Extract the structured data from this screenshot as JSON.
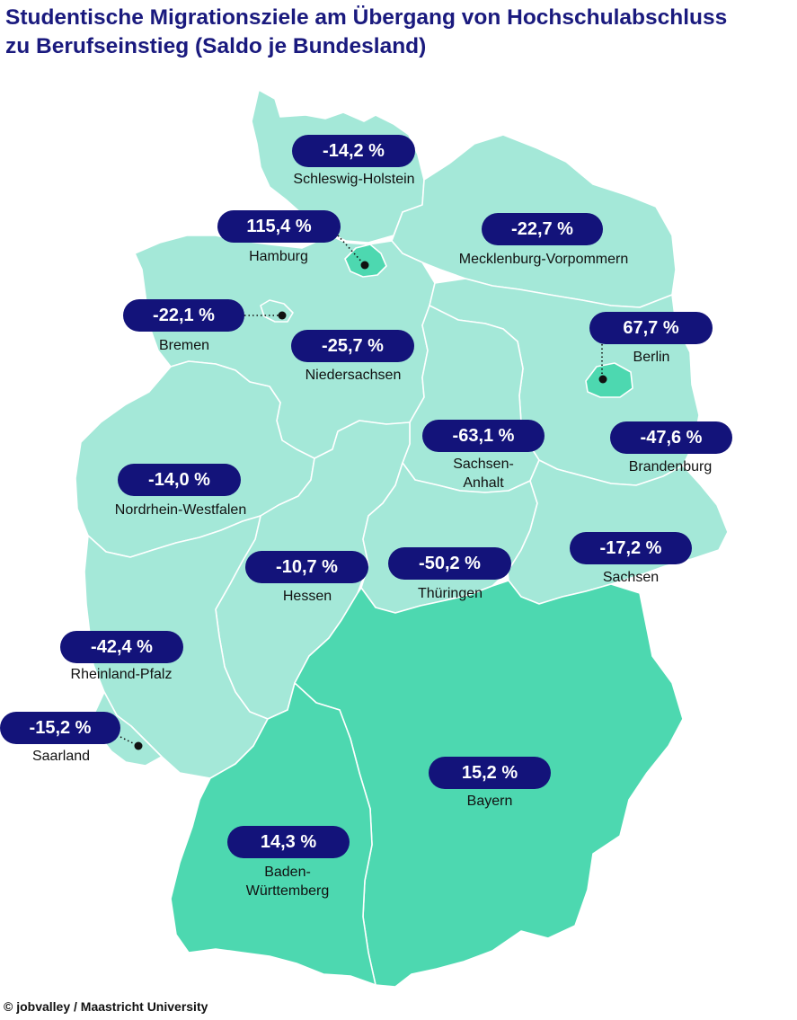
{
  "title": {
    "line1": "Studentische Migrationsziele am Übergang von Hochschulabschluss",
    "line2": "zu Berufseinstieg (Saldo je Bundesland)"
  },
  "colors": {
    "title": "#1a1a7e",
    "pill": "#13137a",
    "region_low": "#a4e8d8",
    "region_high": "#4dd8b0"
  },
  "states": [
    {
      "id": "schleswig-holstein",
      "name": "Schleswig-Holstein",
      "value": "-14,2 %",
      "shade": "low"
    },
    {
      "id": "hamburg",
      "name": "Hamburg",
      "value": "115,4 %",
      "shade": "high"
    },
    {
      "id": "mecklenburg-vorpommern",
      "name": "Mecklenburg-Vorpommern",
      "value": "-22,7 %",
      "shade": "low"
    },
    {
      "id": "bremen",
      "name": "Bremen",
      "value": "-22,1 %",
      "shade": "low"
    },
    {
      "id": "niedersachsen",
      "name": "Niedersachsen",
      "value": "-25,7 %",
      "shade": "low"
    },
    {
      "id": "berlin",
      "name": "Berlin",
      "value": "67,7 %",
      "shade": "high"
    },
    {
      "id": "sachsen-anhalt",
      "name": "Sachsen-Anhalt",
      "name_lines": [
        "Sachsen-",
        "Anhalt"
      ],
      "value": "-63,1 %",
      "shade": "low"
    },
    {
      "id": "brandenburg",
      "name": "Brandenburg",
      "value": "-47,6 %",
      "shade": "low"
    },
    {
      "id": "nordrhein-westfalen",
      "name": "Nordrhein-Westfalen",
      "value": "-14,0 %",
      "shade": "low"
    },
    {
      "id": "sachsen",
      "name": "Sachsen",
      "value": "-17,2 %",
      "shade": "low"
    },
    {
      "id": "hessen",
      "name": "Hessen",
      "value": "-10,7 %",
      "shade": "low"
    },
    {
      "id": "thueringen",
      "name": "Thüringen",
      "value": "-50,2 %",
      "shade": "low"
    },
    {
      "id": "rheinland-pfalz",
      "name": "Rheinland-Pfalz",
      "value": "-42,4 %",
      "shade": "low"
    },
    {
      "id": "saarland",
      "name": "Saarland",
      "value": "-15,2 %",
      "shade": "low"
    },
    {
      "id": "bayern",
      "name": "Bayern",
      "value": "15,2 %",
      "shade": "high"
    },
    {
      "id": "baden-wuerttemberg",
      "name": "Baden-Württemberg",
      "name_lines": [
        "Baden-",
        "Württemberg"
      ],
      "value": "14,3 %",
      "shade": "high"
    }
  ],
  "credit": "© jobvalley / Maastricht University"
}
